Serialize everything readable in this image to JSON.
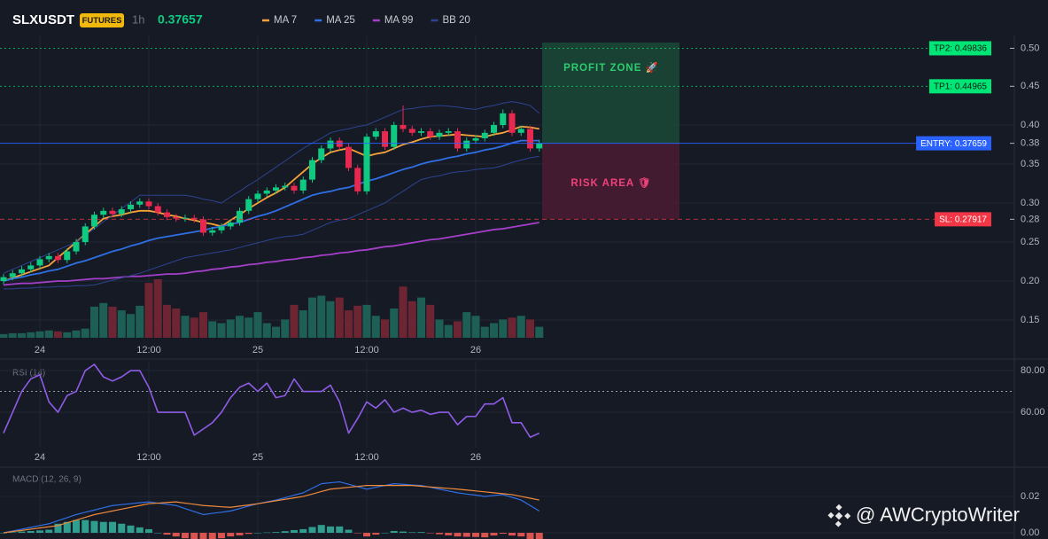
{
  "chart_data": [
    {
      "type": "candlestick",
      "title": "SLXUSDT",
      "badge": "FUTURES",
      "interval": "1h",
      "last_price": 0.37657,
      "categories": [
        null,
        null,
        null,
        null,
        "24",
        null,
        null,
        null,
        null,
        null,
        null,
        null,
        null,
        null,
        null,
        null,
        "12:00",
        null,
        null,
        null,
        null,
        null,
        null,
        null,
        null,
        null,
        null,
        null,
        "25",
        null,
        null,
        null,
        null,
        null,
        null,
        null,
        null,
        null,
        null,
        null,
        "12:00",
        null,
        null,
        null,
        null,
        null,
        null,
        null,
        null,
        null,
        null,
        null,
        "26",
        null,
        null,
        null,
        null,
        null,
        null,
        null
      ],
      "open": [
        0.2,
        0.205,
        0.21,
        0.215,
        0.22,
        0.228,
        0.232,
        0.227,
        0.238,
        0.25,
        0.27,
        0.285,
        0.29,
        0.286,
        0.292,
        0.298,
        0.302,
        0.296,
        0.288,
        0.282,
        0.28,
        0.281,
        0.279,
        0.262,
        0.265,
        0.27,
        0.275,
        0.29,
        0.305,
        0.312,
        0.316,
        0.32,
        0.322,
        0.316,
        0.33,
        0.355,
        0.37,
        0.38,
        0.372,
        0.345,
        0.315,
        0.385,
        0.392,
        0.372,
        0.4,
        0.395,
        0.39,
        0.392,
        0.385,
        0.39,
        0.392,
        0.37,
        0.38,
        0.383,
        0.39,
        0.4,
        0.415,
        0.39,
        0.395,
        0.37
      ],
      "high": [
        0.209,
        0.214,
        0.219,
        0.224,
        0.232,
        0.236,
        0.236,
        0.242,
        0.254,
        0.274,
        0.289,
        0.294,
        0.294,
        0.296,
        0.302,
        0.306,
        0.306,
        0.3,
        0.292,
        0.286,
        0.285,
        0.285,
        0.283,
        0.269,
        0.274,
        0.279,
        0.294,
        0.309,
        0.316,
        0.32,
        0.324,
        0.326,
        0.326,
        0.334,
        0.359,
        0.374,
        0.384,
        0.384,
        0.376,
        0.349,
        0.389,
        0.396,
        0.396,
        0.404,
        0.425,
        0.399,
        0.396,
        0.396,
        0.394,
        0.396,
        0.396,
        0.384,
        0.387,
        0.394,
        0.404,
        0.42,
        0.419,
        0.399,
        0.399,
        0.381
      ],
      "low": [
        0.196,
        0.201,
        0.206,
        0.211,
        0.216,
        0.224,
        0.223,
        0.223,
        0.234,
        0.246,
        0.266,
        0.281,
        0.282,
        0.282,
        0.288,
        0.294,
        0.292,
        0.284,
        0.278,
        0.276,
        0.276,
        0.275,
        0.258,
        0.258,
        0.261,
        0.266,
        0.271,
        0.286,
        0.301,
        0.308,
        0.312,
        0.316,
        0.312,
        0.312,
        0.326,
        0.351,
        0.366,
        0.368,
        0.341,
        0.311,
        0.311,
        0.381,
        0.368,
        0.368,
        0.391,
        0.386,
        0.386,
        0.381,
        0.381,
        0.386,
        0.366,
        0.366,
        0.376,
        0.379,
        0.386,
        0.396,
        0.386,
        0.386,
        0.366,
        0.366
      ],
      "close": [
        0.205,
        0.21,
        0.215,
        0.22,
        0.228,
        0.232,
        0.227,
        0.238,
        0.25,
        0.27,
        0.285,
        0.29,
        0.286,
        0.292,
        0.298,
        0.302,
        0.296,
        0.288,
        0.282,
        0.28,
        0.281,
        0.279,
        0.262,
        0.265,
        0.27,
        0.275,
        0.29,
        0.305,
        0.312,
        0.316,
        0.32,
        0.322,
        0.316,
        0.33,
        0.355,
        0.37,
        0.38,
        0.372,
        0.345,
        0.315,
        0.385,
        0.392,
        0.372,
        0.4,
        0.395,
        0.39,
        0.392,
        0.385,
        0.39,
        0.392,
        0.37,
        0.38,
        0.383,
        0.39,
        0.4,
        0.415,
        0.39,
        0.395,
        0.37,
        0.37657
      ],
      "volume": [
        4,
        5,
        5,
        6,
        7,
        8,
        7,
        6,
        8,
        10,
        34,
        38,
        34,
        30,
        26,
        35,
        60,
        64,
        36,
        32,
        24,
        22,
        28,
        18,
        16,
        20,
        24,
        22,
        28,
        16,
        12,
        20,
        36,
        30,
        44,
        46,
        40,
        44,
        30,
        35,
        36,
        24,
        20,
        32,
        56,
        40,
        44,
        36,
        20,
        14,
        18,
        28,
        24,
        12,
        16,
        20,
        22,
        24,
        20,
        12
      ],
      "up_color": "#0ecb81",
      "down_color": "#e8294f",
      "volume_up_color": "#1d5f55",
      "volume_down_color": "#6e2533",
      "series": [
        {
          "name": "MA 7",
          "color": "#f7a23b",
          "values": [
            0.2,
            0.204,
            0.208,
            0.212,
            0.216,
            0.22,
            0.23,
            0.24,
            0.25,
            0.26,
            0.27,
            0.28,
            0.283,
            0.285,
            0.288,
            0.29,
            0.29,
            0.288,
            0.285,
            0.283,
            0.28,
            0.278,
            0.275,
            0.273,
            0.27,
            0.278,
            0.285,
            0.293,
            0.3,
            0.307,
            0.313,
            0.32,
            0.33,
            0.34,
            0.35,
            0.358,
            0.365,
            0.368,
            0.37,
            0.365,
            0.36,
            0.363,
            0.365,
            0.37,
            0.375,
            0.378,
            0.382,
            0.385,
            0.386,
            0.387,
            0.388,
            0.387,
            0.386,
            0.385,
            0.388,
            0.39,
            0.394,
            0.398,
            0.397,
            0.395
          ]
        },
        {
          "name": "MA 25",
          "color": "#2f6fe4",
          "values": [
            0.2,
            0.203,
            0.205,
            0.208,
            0.21,
            0.213,
            0.215,
            0.219,
            0.223,
            0.226,
            0.23,
            0.234,
            0.238,
            0.241,
            0.245,
            0.248,
            0.252,
            0.255,
            0.257,
            0.259,
            0.261,
            0.263,
            0.265,
            0.268,
            0.27,
            0.273,
            0.275,
            0.279,
            0.283,
            0.286,
            0.29,
            0.295,
            0.3,
            0.305,
            0.31,
            0.313,
            0.315,
            0.318,
            0.32,
            0.324,
            0.328,
            0.331,
            0.335,
            0.339,
            0.343,
            0.346,
            0.35,
            0.353,
            0.355,
            0.358,
            0.36,
            0.363,
            0.365,
            0.368,
            0.37,
            0.373,
            0.377,
            0.38,
            0.38,
            0.38
          ]
        },
        {
          "name": "MA 99",
          "color": "#a53fc9",
          "values": [
            0.195,
            0.196,
            0.197,
            0.197,
            0.198,
            0.199,
            0.2,
            0.2,
            0.201,
            0.202,
            0.203,
            0.203,
            0.204,
            0.205,
            0.206,
            0.206,
            0.207,
            0.208,
            0.209,
            0.209,
            0.21,
            0.212,
            0.213,
            0.215,
            0.216,
            0.218,
            0.219,
            0.221,
            0.222,
            0.224,
            0.225,
            0.227,
            0.228,
            0.23,
            0.231,
            0.233,
            0.234,
            0.236,
            0.237,
            0.239,
            0.24,
            0.242,
            0.244,
            0.245,
            0.247,
            0.249,
            0.251,
            0.253,
            0.254,
            0.256,
            0.258,
            0.26,
            0.262,
            0.264,
            0.266,
            0.267,
            0.269,
            0.271,
            0.273,
            0.275
          ]
        },
        {
          "name": "BB 20",
          "color": "#2d4390",
          "values": [
            0.21,
            0.215,
            0.22,
            0.225,
            0.23,
            0.235,
            0.24,
            0.245,
            0.25,
            0.259,
            0.267,
            0.276,
            0.284,
            0.293,
            0.301,
            0.31,
            0.31,
            0.31,
            0.31,
            0.31,
            0.31,
            0.308,
            0.305,
            0.303,
            0.3,
            0.308,
            0.315,
            0.323,
            0.33,
            0.338,
            0.346,
            0.354,
            0.362,
            0.37,
            0.377,
            0.383,
            0.39,
            0.393,
            0.395,
            0.398,
            0.4,
            0.405,
            0.41,
            0.415,
            0.42,
            0.421,
            0.423,
            0.424,
            0.425,
            0.424,
            0.423,
            0.421,
            0.42,
            0.423,
            0.425,
            0.428,
            0.43,
            0.428,
            0.425,
            0.415
          ],
          "lower_values": [
            0.19,
            0.19,
            0.191,
            0.191,
            0.192,
            0.192,
            0.193,
            0.193,
            0.194,
            0.194,
            0.195,
            0.198,
            0.201,
            0.204,
            0.207,
            0.21,
            0.214,
            0.218,
            0.222,
            0.226,
            0.23,
            0.232,
            0.234,
            0.236,
            0.238,
            0.24,
            0.243,
            0.246,
            0.249,
            0.252,
            0.255,
            0.257,
            0.258,
            0.26,
            0.265,
            0.27,
            0.275,
            0.278,
            0.28,
            0.285,
            0.29,
            0.295,
            0.3,
            0.308,
            0.315,
            0.323,
            0.33,
            0.333,
            0.335,
            0.338,
            0.34,
            0.341,
            0.343,
            0.344,
            0.345,
            0.348,
            0.352,
            0.355,
            0.358,
            0.36
          ]
        }
      ],
      "ylim": [
        0.1273,
        0.5148
      ],
      "yticks": [
        0.15,
        {
          "value": 0.2,
          "label": "0.20"
        },
        0.25,
        {
          "value": 0.3,
          "label": "0.30"
        },
        0.35,
        {
          "value": 0.4,
          "label": "0.40"
        }
      ],
      "grid": true,
      "levels": [
        {
          "label": "TP2: 0.49836",
          "value": 0.49836,
          "axis_label": "0.50",
          "color": "#00e676",
          "style": "dotted"
        },
        {
          "label": "TP1: 0.44965",
          "value": 0.44965,
          "axis_label": "0.45",
          "color": "#00e676",
          "style": "dotted"
        },
        {
          "label": "ENTRY: 0.37659",
          "value": 0.37659,
          "axis_label": "0.38",
          "color": "#2962ff",
          "style": "solid"
        },
        {
          "label": "SL: 0.27917",
          "value": 0.27917,
          "axis_label": "0.28",
          "color": "#f23645",
          "style": "dashed"
        }
      ],
      "zones": [
        {
          "label": "PROFIT ZONE 🚀",
          "from": 0.37659,
          "to": 0.5057,
          "color": "#1a4a37",
          "text_color": "#2ecc71"
        },
        {
          "label": "RISK AREA 🛡",
          "from": 0.27917,
          "to": 0.37659,
          "color": "#4a1c33",
          "text_color": "#f0427a"
        }
      ]
    },
    {
      "type": "line",
      "title": "RSI (14)",
      "values": [
        50,
        60,
        70,
        76,
        78,
        65,
        60,
        68,
        70,
        80,
        83,
        77,
        75,
        77,
        80,
        80,
        72,
        60,
        60,
        60,
        60,
        49,
        52,
        55,
        60,
        67,
        72,
        74,
        70,
        74,
        67,
        68,
        76,
        70,
        70,
        70,
        73,
        65,
        50,
        57,
        65,
        62,
        66,
        60,
        62,
        60,
        61,
        59,
        60,
        60,
        54,
        58,
        58,
        64,
        64,
        67,
        55,
        55,
        48,
        50
      ],
      "color": "#8e5ce6",
      "ylim": [
        43,
        84.7
      ],
      "yticks": [
        {
          "value": 80,
          "label": "80.00"
        },
        {
          "value": 60,
          "label": "60.00"
        }
      ],
      "reference_line": 70
    },
    {
      "type": "macd",
      "title": "MACD (12, 26, 9)",
      "series": [
        {
          "color": "#2f6fe4",
          "values": [
            0,
            0.001,
            0.002,
            0.003,
            0.004,
            0.005,
            0.0067,
            0.0083,
            0.01,
            0.0113,
            0.0125,
            0.0138,
            0.015,
            0.0155,
            0.016,
            0.0165,
            0.017,
            0.0163,
            0.0157,
            0.015,
            0.0133,
            0.0117,
            0.01,
            0.0107,
            0.0113,
            0.012,
            0.0133,
            0.0147,
            0.016,
            0.017,
            0.018,
            0.0193,
            0.0207,
            0.022,
            0.0245,
            0.027,
            0.0275,
            0.028,
            0.0267,
            0.0253,
            0.024,
            0.025,
            0.026,
            0.027,
            0.0267,
            0.0263,
            0.026,
            0.025,
            0.024,
            0.023,
            0.022,
            0.0213,
            0.0207,
            0.02,
            0.0205,
            0.021,
            0.0195,
            0.018,
            0.015,
            0.012
          ]
        },
        {
          "color": "#f08a3c",
          "values": [
            0,
            0.0007,
            0.0013,
            0.002,
            0.0027,
            0.0033,
            0.004,
            0.0055,
            0.007,
            0.0085,
            0.01,
            0.011,
            0.012,
            0.013,
            0.014,
            0.015,
            0.016,
            0.0163,
            0.0167,
            0.017,
            0.0163,
            0.0157,
            0.015,
            0.0147,
            0.0143,
            0.014,
            0.0147,
            0.0153,
            0.016,
            0.0168,
            0.0176,
            0.0184,
            0.0192,
            0.02,
            0.0213,
            0.0227,
            0.024,
            0.0245,
            0.025,
            0.0255,
            0.026,
            0.026,
            0.026,
            0.026,
            0.026,
            0.026,
            0.0256,
            0.0252,
            0.0248,
            0.0244,
            0.024,
            0.0235,
            0.023,
            0.0225,
            0.022,
            0.0215,
            0.021,
            0.02,
            0.019,
            0.018
          ]
        }
      ],
      "histogram": [
        0,
        0.0003,
        0.0007,
        0.001,
        0.0013,
        0.0017,
        0.005,
        0.006,
        0.007,
        0.007,
        0.0065,
        0.006,
        0.006,
        0.005,
        0.004,
        0.003,
        0.002,
        0,
        -0.001,
        -0.002,
        -0.003,
        -0.004,
        -0.005,
        -0.004,
        -0.003,
        -0.002,
        -0.0014,
        -0.0006,
        0,
        0.0002,
        0.0004,
        0.0009,
        0.0015,
        0.002,
        0.0032,
        0.0043,
        0.0035,
        0.0035,
        0.0017,
        -0.0002,
        -0.002,
        -0.001,
        0,
        0.001,
        0.0007,
        0.0003,
        0.0004,
        -0.0002,
        -0.0008,
        -0.0014,
        -0.002,
        -0.0022,
        -0.0023,
        -0.0025,
        -0.0015,
        -0.0005,
        -0.0015,
        -0.002,
        -0.004,
        -0.006
      ],
      "histogram_up_color": "#2f9e8f",
      "histogram_down_color": "#d9534f",
      "ylim": [
        -0.0034,
        0.0346
      ],
      "yticks": [
        0.02,
        {
          "value": 0,
          "label": "0.00"
        }
      ]
    }
  ],
  "watermark": "@ AWCryptoWriter"
}
